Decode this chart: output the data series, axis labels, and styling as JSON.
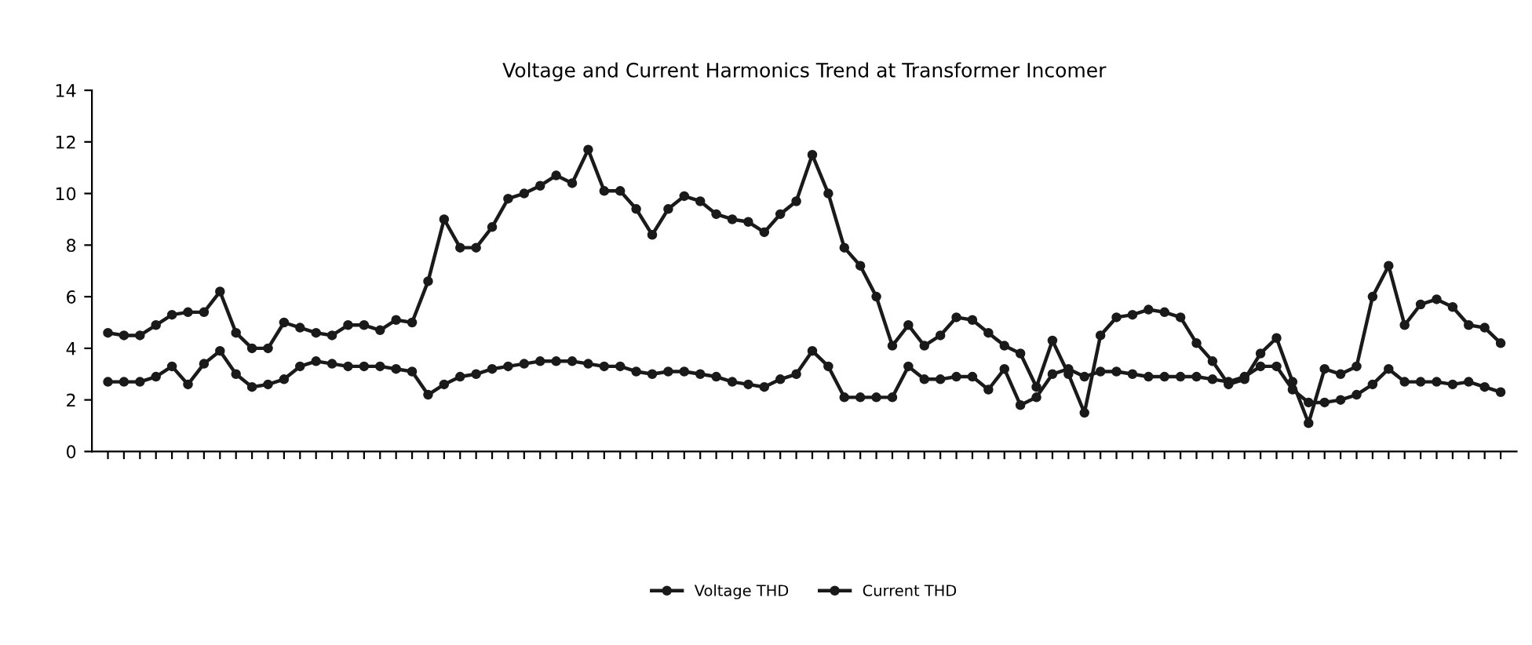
{
  "chart_data": {
    "type": "line",
    "title": "Voltage and Current Harmonics Trend at Transformer Incomer",
    "categories": [
      null,
      null,
      null,
      null,
      null,
      null,
      null,
      null,
      null,
      null,
      null,
      null,
      null,
      null,
      null,
      null,
      null,
      null,
      null,
      null,
      null,
      null,
      null,
      null,
      null,
      null,
      null,
      null,
      null,
      null,
      null,
      null,
      null,
      null,
      null,
      null,
      null,
      null,
      null,
      null,
      null,
      null,
      null,
      null,
      null,
      null,
      null,
      null,
      null,
      null,
      null,
      null,
      null,
      null,
      null,
      null,
      null,
      null,
      null,
      null,
      null,
      null,
      null,
      null,
      null,
      null,
      null,
      null,
      null,
      null,
      null,
      null,
      null,
      null,
      null,
      null,
      null,
      null,
      null,
      null,
      null,
      null,
      null,
      null,
      null,
      null,
      null,
      null
    ],
    "series": [
      {
        "name": "Voltage THD",
        "color": "#1a1a1a",
        "values": [
          2.7,
          2.7,
          2.7,
          2.9,
          3.3,
          2.6,
          3.4,
          3.9,
          3.0,
          2.5,
          2.6,
          2.8,
          3.3,
          3.5,
          3.4,
          3.3,
          3.3,
          3.3,
          3.2,
          3.1,
          2.2,
          2.6,
          2.9,
          3.0,
          3.2,
          3.3,
          3.4,
          3.5,
          3.5,
          3.5,
          3.4,
          3.3,
          3.3,
          3.1,
          3.0,
          3.1,
          3.1,
          3.0,
          2.9,
          2.7,
          2.6,
          2.5,
          2.8,
          3.0,
          3.9,
          3.3,
          2.1,
          2.1,
          2.1,
          2.1,
          3.3,
          2.8,
          2.8,
          2.9,
          2.9,
          2.4,
          3.2,
          1.8,
          2.1,
          3.0,
          3.2,
          2.9,
          3.1,
          3.1,
          3.0,
          2.9,
          2.9,
          2.9,
          2.9,
          2.8,
          2.7,
          2.9,
          3.3,
          3.3,
          2.4,
          1.9,
          1.9,
          2.0,
          2.2,
          2.6,
          3.2,
          2.7,
          2.7,
          2.7,
          2.6,
          2.7,
          2.5,
          2.3
        ]
      },
      {
        "name": "Current THD",
        "color": "#1a1a1a",
        "values": [
          4.6,
          4.5,
          4.5,
          4.9,
          5.3,
          5.4,
          5.4,
          6.2,
          4.6,
          4.0,
          4.0,
          5.0,
          4.8,
          4.6,
          4.5,
          4.9,
          4.9,
          4.7,
          5.1,
          5.0,
          6.6,
          9.0,
          7.9,
          7.9,
          8.7,
          9.8,
          10.0,
          10.3,
          10.7,
          10.4,
          11.7,
          10.1,
          10.1,
          9.4,
          8.4,
          9.4,
          9.9,
          9.7,
          9.2,
          9.0,
          8.9,
          8.5,
          9.2,
          9.7,
          11.5,
          10.0,
          7.9,
          7.2,
          6.0,
          4.1,
          4.9,
          4.1,
          4.5,
          5.2,
          5.1,
          4.6,
          4.1,
          3.8,
          2.5,
          4.3,
          3.0,
          1.5,
          4.5,
          5.2,
          5.3,
          5.5,
          5.4,
          5.2,
          4.2,
          3.5,
          2.6,
          2.8,
          3.8,
          4.4,
          2.7,
          1.1,
          3.2,
          3.0,
          3.3,
          6.0,
          7.2,
          4.9,
          5.7,
          5.9,
          5.6,
          4.9,
          4.8,
          4.2
        ]
      }
    ],
    "ylim": [
      0,
      14
    ],
    "yticks": [
      0,
      2,
      4,
      6,
      8,
      10,
      12,
      14
    ],
    "legend": "bottom",
    "marker": "circle",
    "line_style": "solid"
  }
}
